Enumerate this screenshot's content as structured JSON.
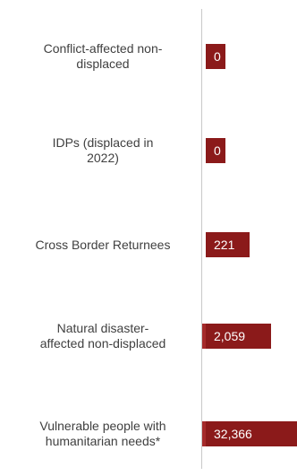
{
  "chart_data": {
    "type": "bar",
    "orientation": "horizontal",
    "categories": [
      "Conflict-affected non-displaced",
      "IDPs (displaced in 2022)",
      "Cross Border Returnees",
      "Natural disaster-affected non-displaced",
      "Vulnerable people with humanitarian needs*"
    ],
    "category_display": [
      [
        "Conflict-affected non-",
        "displaced"
      ],
      [
        "IDPs (displaced in",
        "2022)"
      ],
      [
        "Cross Border Returnees"
      ],
      [
        "Natural disaster-",
        "affected non-displaced"
      ],
      [
        "Vulnerable people with",
        "humanitarian needs*"
      ]
    ],
    "values": [
      0,
      0,
      221,
      2059,
      32366
    ],
    "value_labels": [
      "0",
      "0",
      "221",
      "2,059",
      "32,366"
    ],
    "colors": {
      "bar": "#8b1a1a",
      "axis": "#c9c9c9",
      "text": "#404040",
      "value_text": "#ffffff"
    },
    "grid": false,
    "legend": "none"
  }
}
